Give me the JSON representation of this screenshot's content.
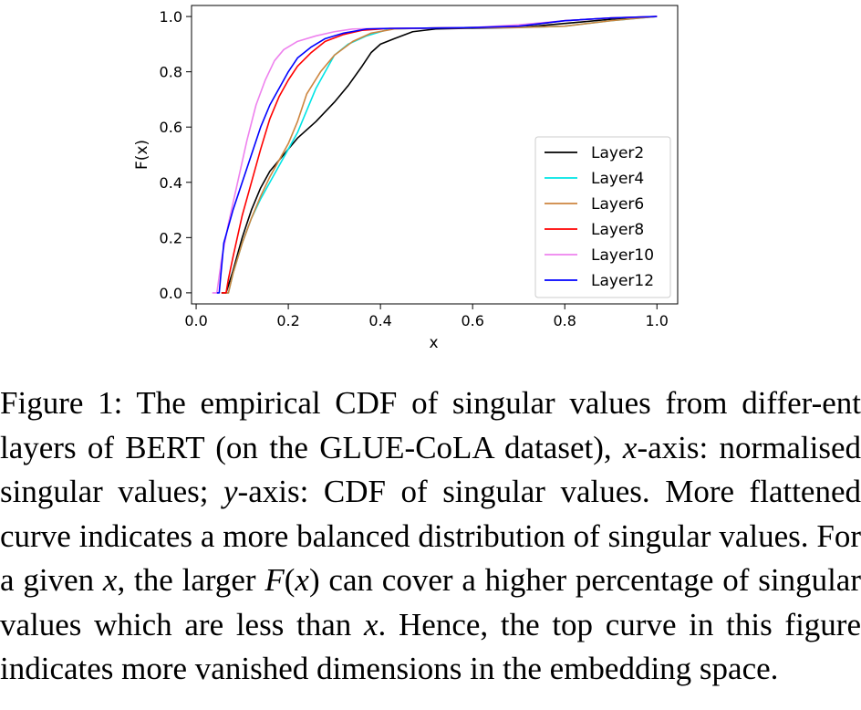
{
  "chart_data": {
    "type": "line",
    "title": "",
    "xlabel": "x",
    "ylabel": "F(x)",
    "xlim": [
      -0.01,
      1.045
    ],
    "ylim": [
      -0.04,
      1.04
    ],
    "x_ticks": [
      "0.0",
      "0.2",
      "0.4",
      "0.6",
      "0.8",
      "1.0"
    ],
    "x_tick_values": [
      0.0,
      0.2,
      0.4,
      0.6,
      0.8,
      1.0
    ],
    "y_ticks": [
      "0.0",
      "0.2",
      "0.4",
      "0.6",
      "0.8",
      "1.0"
    ],
    "y_tick_values": [
      0.0,
      0.2,
      0.4,
      0.6,
      0.8,
      1.0
    ],
    "grid": false,
    "legend_position": "lower-right",
    "series": [
      {
        "name": "Layer2",
        "color": "#000000",
        "x": [
          0.055,
          0.065,
          0.08,
          0.1,
          0.12,
          0.14,
          0.16,
          0.19,
          0.22,
          0.26,
          0.3,
          0.33,
          0.36,
          0.38,
          0.4,
          0.43,
          0.47,
          0.52,
          0.6,
          0.7,
          0.8,
          0.9,
          1.0
        ],
        "y": [
          0.0,
          0.0,
          0.08,
          0.2,
          0.3,
          0.38,
          0.44,
          0.5,
          0.56,
          0.62,
          0.69,
          0.75,
          0.82,
          0.87,
          0.9,
          0.92,
          0.945,
          0.955,
          0.958,
          0.96,
          0.975,
          0.99,
          1.0
        ]
      },
      {
        "name": "Layer4",
        "color": "#00e5e5",
        "x": [
          0.06,
          0.07,
          0.08,
          0.1,
          0.12,
          0.14,
          0.16,
          0.18,
          0.2,
          0.22,
          0.24,
          0.26,
          0.28,
          0.3,
          0.33,
          0.37,
          0.42,
          0.5,
          0.6,
          0.7,
          0.8,
          0.9,
          1.0
        ],
        "y": [
          0.0,
          0.0,
          0.07,
          0.18,
          0.27,
          0.34,
          0.4,
          0.46,
          0.52,
          0.58,
          0.66,
          0.74,
          0.8,
          0.86,
          0.9,
          0.93,
          0.955,
          0.958,
          0.96,
          0.96,
          0.965,
          0.985,
          1.0
        ]
      },
      {
        "name": "Layer6",
        "color": "#cd853f",
        "x": [
          0.06,
          0.07,
          0.08,
          0.1,
          0.12,
          0.14,
          0.16,
          0.18,
          0.2,
          0.22,
          0.24,
          0.27,
          0.3,
          0.34,
          0.38,
          0.43,
          0.5,
          0.6,
          0.7,
          0.8,
          0.9,
          1.0
        ],
        "y": [
          0.0,
          0.0,
          0.07,
          0.18,
          0.27,
          0.35,
          0.42,
          0.48,
          0.54,
          0.62,
          0.72,
          0.8,
          0.86,
          0.91,
          0.94,
          0.955,
          0.958,
          0.96,
          0.96,
          0.965,
          0.985,
          1.0
        ]
      },
      {
        "name": "Layer8",
        "color": "#ff0000",
        "x": [
          0.055,
          0.065,
          0.07,
          0.08,
          0.1,
          0.12,
          0.14,
          0.16,
          0.18,
          0.2,
          0.22,
          0.25,
          0.28,
          0.32,
          0.36,
          0.42,
          0.5,
          0.6,
          0.7,
          0.8,
          0.9,
          1.0
        ],
        "y": [
          0.0,
          0.0,
          0.05,
          0.13,
          0.28,
          0.4,
          0.52,
          0.63,
          0.71,
          0.77,
          0.82,
          0.87,
          0.91,
          0.935,
          0.95,
          0.957,
          0.958,
          0.96,
          0.965,
          0.985,
          0.995,
          1.0
        ]
      },
      {
        "name": "Layer10",
        "color": "#ee82ee",
        "x": [
          0.035,
          0.045,
          0.055,
          0.07,
          0.09,
          0.11,
          0.13,
          0.15,
          0.17,
          0.19,
          0.22,
          0.26,
          0.3,
          0.34,
          0.4,
          0.5,
          0.6,
          0.7,
          0.8,
          0.9,
          1.0
        ],
        "y": [
          0.0,
          0.0,
          0.12,
          0.25,
          0.4,
          0.55,
          0.68,
          0.77,
          0.84,
          0.88,
          0.91,
          0.93,
          0.945,
          0.955,
          0.957,
          0.958,
          0.96,
          0.97,
          0.985,
          0.995,
          1.0
        ]
      },
      {
        "name": "Layer12",
        "color": "#0000ff",
        "x": [
          0.045,
          0.05,
          0.06,
          0.08,
          0.1,
          0.12,
          0.14,
          0.16,
          0.18,
          0.2,
          0.22,
          0.25,
          0.28,
          0.32,
          0.37,
          0.42,
          0.5,
          0.6,
          0.7,
          0.8,
          0.9,
          1.0
        ],
        "y": [
          0.0,
          0.0,
          0.18,
          0.3,
          0.4,
          0.5,
          0.6,
          0.68,
          0.74,
          0.8,
          0.85,
          0.89,
          0.92,
          0.94,
          0.955,
          0.957,
          0.958,
          0.96,
          0.965,
          0.985,
          0.995,
          1.0
        ]
      }
    ]
  },
  "caption": {
    "p1": "Figure 1: The empirical CDF of singular values from differ-ent layers of BERT (on the GLUE-CoLA dataset), ",
    "m1": "x",
    "p2": "-axis: normalised singular values; ",
    "m2": "y",
    "p3": "-axis: CDF of singular values. More flattened curve indicates a more balanced distribution of singular values. For a given ",
    "m3": "x",
    "p4": ", the larger ",
    "m4": "F",
    "p5": "(",
    "m5": "x",
    "p6": ") can cover a higher percentage of singular values which are less than ",
    "m6": "x",
    "p7": ". Hence, the top curve in this figure indicates more vanished dimensions in the embedding space."
  }
}
